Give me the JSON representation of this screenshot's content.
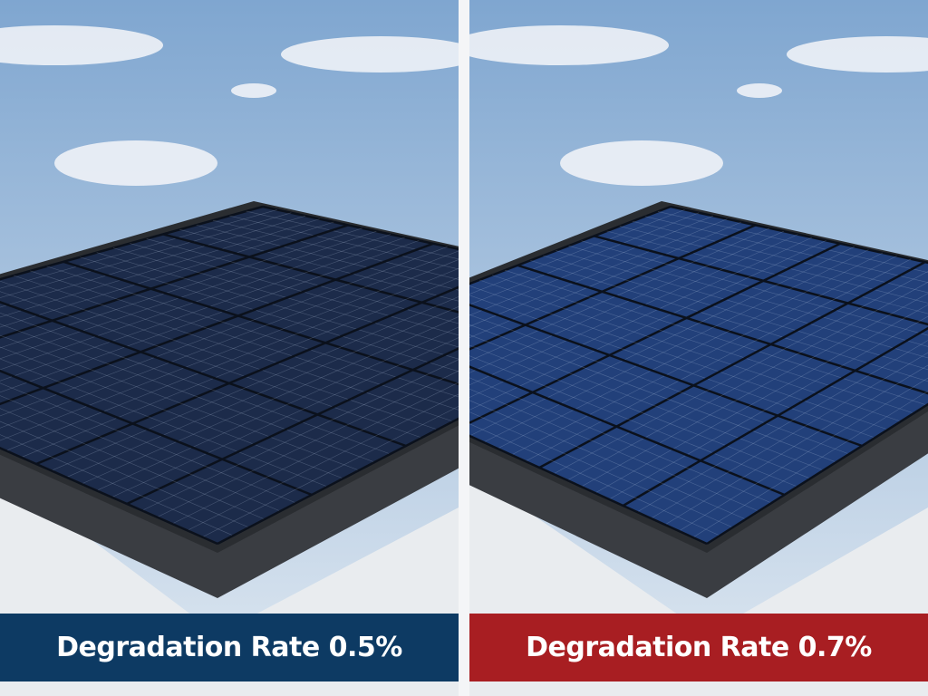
{
  "panels": [
    {
      "label": "Degradation Rate 0.5%",
      "banner_color": "#0d3a63",
      "panel_color": "#1c2b4a"
    },
    {
      "label": "Degradation Rate 0.7%",
      "banner_color": "#a81e22",
      "panel_color": "#22407a"
    }
  ]
}
